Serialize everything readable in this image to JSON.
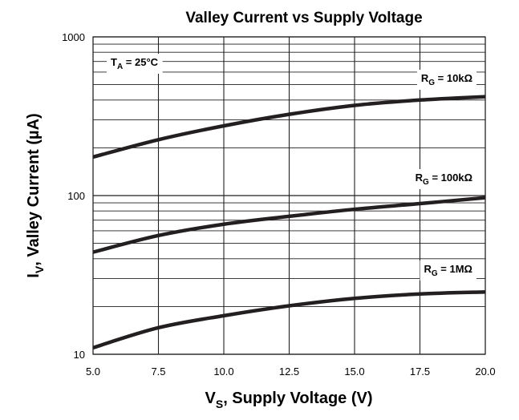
{
  "chart_data": {
    "type": "line",
    "title": "Valley Current vs Supply Voltage",
    "xlabel": {
      "main": "V",
      "sub": "S",
      "rest": ", Supply Voltage (V)"
    },
    "ylabel": {
      "main": "I",
      "sub": "V",
      "rest": ", Valley Current (µA)"
    },
    "xlim": [
      5.0,
      20.0
    ],
    "ylim": [
      10,
      1000
    ],
    "y_scale": "log",
    "grid": true,
    "x_ticks": [
      "5.0",
      "7.5",
      "10.0",
      "12.5",
      "15.0",
      "17.5",
      "20.0"
    ],
    "x_tick_values": [
      5.0,
      7.5,
      10.0,
      12.5,
      15.0,
      17.5,
      20.0
    ],
    "y_ticks": [
      "10",
      "100",
      "1000"
    ],
    "y_tick_values": [
      10,
      100,
      1000
    ],
    "annotation": {
      "main": "T",
      "sub": "A",
      "rest": " = 25°C"
    },
    "series": [
      {
        "name": {
          "main": "R",
          "sub": "G",
          "rest": " = 10kΩ"
        },
        "x": [
          5.0,
          7.5,
          10.0,
          12.5,
          15.0,
          17.5,
          20.0
        ],
        "values": [
          175,
          225,
          275,
          325,
          370,
          400,
          420
        ]
      },
      {
        "name": {
          "main": "R",
          "sub": "G",
          "rest": " = 100kΩ"
        },
        "x": [
          5.0,
          7.5,
          10.0,
          12.5,
          15.0,
          17.5,
          20.0
        ],
        "values": [
          44,
          56,
          66,
          74,
          82,
          89,
          97
        ]
      },
      {
        "name": {
          "main": "R",
          "sub": "G",
          "rest": " = 1MΩ"
        },
        "x": [
          5.0,
          7.5,
          10.0,
          12.5,
          15.0,
          17.5,
          20.0
        ],
        "values": [
          11,
          14.7,
          17.5,
          20.2,
          22.5,
          24,
          24.7
        ]
      }
    ],
    "colors": {
      "line": "#231f20",
      "grid": "#231f20",
      "background": "#ffffff"
    }
  }
}
